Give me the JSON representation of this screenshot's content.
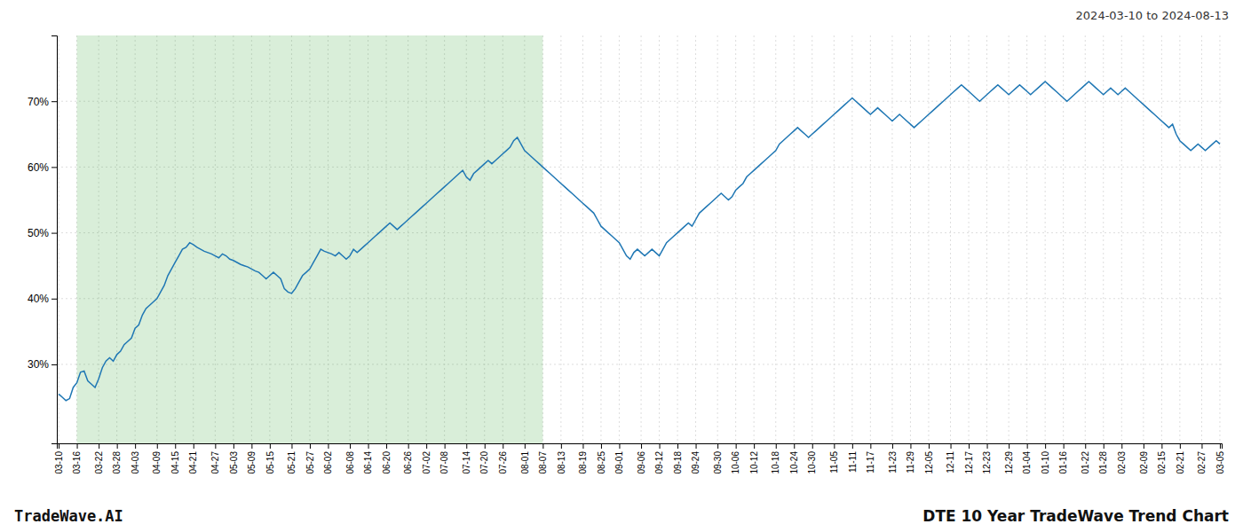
{
  "chart_data": {
    "type": "line",
    "title": "DTE 10 Year TradeWave Trend Chart",
    "subtitle": "2024-03-10 to 2024-08-13",
    "annotations": [
      "TradeWave.AI"
    ],
    "grid": true,
    "ylim": [
      18,
      80
    ],
    "yticks": [
      {
        "value": 30,
        "label": "30%"
      },
      {
        "value": 40,
        "label": "40%"
      },
      {
        "value": 50,
        "label": "50%"
      },
      {
        "value": 60,
        "label": "60%"
      },
      {
        "value": 70,
        "label": "70%"
      }
    ],
    "shaded_range": [
      "03-16",
      "08-07"
    ],
    "categories": [
      "03-10",
      null,
      null,
      null,
      null,
      "03-16",
      null,
      null,
      null,
      null,
      null,
      "03-22",
      null,
      null,
      null,
      null,
      "03-28",
      null,
      null,
      null,
      null,
      "04-03",
      null,
      null,
      null,
      null,
      null,
      "04-09",
      null,
      null,
      null,
      null,
      "04-15",
      null,
      null,
      null,
      null,
      "04-21",
      null,
      null,
      null,
      null,
      null,
      "04-27",
      null,
      null,
      null,
      null,
      "05-03",
      null,
      null,
      null,
      null,
      "05-09",
      null,
      null,
      null,
      null,
      "05-15",
      null,
      null,
      null,
      null,
      null,
      "05-21",
      null,
      null,
      null,
      null,
      "05-27",
      null,
      null,
      null,
      null,
      "06-02",
      null,
      null,
      null,
      null,
      null,
      "06-08",
      null,
      null,
      null,
      null,
      "06-14",
      null,
      null,
      null,
      null,
      "06-20",
      null,
      null,
      null,
      null,
      null,
      "06-26",
      null,
      null,
      null,
      null,
      "07-02",
      null,
      null,
      null,
      null,
      "07-08",
      null,
      null,
      null,
      null,
      null,
      "07-14",
      null,
      null,
      null,
      null,
      "07-20",
      null,
      null,
      null,
      null,
      "07-26",
      null,
      null,
      null,
      null,
      null,
      "08-01",
      null,
      null,
      null,
      null,
      "08-07",
      null,
      null,
      null,
      null,
      "08-13",
      null,
      null,
      null,
      null,
      null,
      "08-19",
      null,
      null,
      null,
      null,
      "08-25",
      null,
      null,
      null,
      null,
      "09-01",
      null,
      null,
      null,
      null,
      null,
      "09-06",
      null,
      null,
      null,
      null,
      "09-12",
      null,
      null,
      null,
      null,
      "09-18",
      null,
      null,
      null,
      null,
      "09-24",
      null,
      null,
      null,
      null,
      null,
      "09-30",
      null,
      null,
      null,
      null,
      "10-06",
      null,
      null,
      null,
      null,
      "10-12",
      null,
      null,
      null,
      null,
      null,
      "10-18",
      null,
      null,
      null,
      null,
      "10-24",
      null,
      null,
      null,
      null,
      "10-30",
      null,
      null,
      null,
      null,
      null,
      "11-05",
      null,
      null,
      null,
      null,
      "11-11",
      null,
      null,
      null,
      null,
      "11-17",
      null,
      null,
      null,
      null,
      null,
      "11-23",
      null,
      null,
      null,
      null,
      "11-29",
      null,
      null,
      null,
      null,
      "12-05",
      null,
      null,
      null,
      null,
      null,
      "12-11",
      null,
      null,
      null,
      null,
      "12-17",
      null,
      null,
      null,
      null,
      "12-23",
      null,
      null,
      null,
      null,
      null,
      "12-29",
      null,
      null,
      null,
      null,
      "01-04",
      null,
      null,
      null,
      null,
      "01-10",
      null,
      null,
      null,
      null,
      "01-16",
      null,
      null,
      null,
      null,
      null,
      "01-22",
      null,
      null,
      null,
      null,
      "01-28",
      null,
      null,
      null,
      null,
      "02-03",
      null,
      null,
      null,
      null,
      null,
      "02-09",
      null,
      null,
      null,
      null,
      "02-15",
      null,
      null,
      null,
      null,
      "02-21",
      null,
      null,
      null,
      null,
      null,
      "02-27",
      null,
      null,
      null,
      null,
      "03-05"
    ],
    "values": [
      25.5,
      25.0,
      24.5,
      24.8,
      26.5,
      27.2,
      28.8,
      29.0,
      27.5,
      27.0,
      26.5,
      27.8,
      29.5,
      30.5,
      31.0,
      30.5,
      31.5,
      32.0,
      33.0,
      33.5,
      34.0,
      35.5,
      36.0,
      37.5,
      38.5,
      39.0,
      39.5,
      40.0,
      41.0,
      42.0,
      43.5,
      44.5,
      45.5,
      46.5,
      47.5,
      47.8,
      48.5,
      48.2,
      47.8,
      47.5,
      47.2,
      47.0,
      46.8,
      46.5,
      46.2,
      46.8,
      46.5,
      46.0,
      45.8,
      45.5,
      45.2,
      45.0,
      44.8,
      44.5,
      44.2,
      44.0,
      43.5,
      43.0,
      43.5,
      44.0,
      43.5,
      43.0,
      41.5,
      41.0,
      40.8,
      41.5,
      42.5,
      43.5,
      44.0,
      44.5,
      45.5,
      46.5,
      47.5,
      47.2,
      47.0,
      46.8,
      46.5,
      47.0,
      46.5,
      46.0,
      46.5,
      47.5,
      47.0,
      47.5,
      48.0,
      48.5,
      49.0,
      49.5,
      50.0,
      50.5,
      51.0,
      51.5,
      51.0,
      50.5,
      51.0,
      51.5,
      52.0,
      52.5,
      53.0,
      53.5,
      54.0,
      54.5,
      55.0,
      55.5,
      56.0,
      56.5,
      57.0,
      57.5,
      58.0,
      58.5,
      59.0,
      59.5,
      58.5,
      58.0,
      59.0,
      59.5,
      60.0,
      60.5,
      61.0,
      60.5,
      61.0,
      61.5,
      62.0,
      62.5,
      63.0,
      64.0,
      64.5,
      63.5,
      62.5,
      62.0,
      61.5,
      61.0,
      60.5,
      60.0,
      59.5,
      59.0,
      58.5,
      58.0,
      57.5,
      57.0,
      56.5,
      56.0,
      55.5,
      55.0,
      54.5,
      54.0,
      53.5,
      53.0,
      52.0,
      51.0,
      50.5,
      50.0,
      49.5,
      49.0,
      48.5,
      47.5,
      46.5,
      46.0,
      47.0,
      47.5,
      47.0,
      46.5,
      47.0,
      47.5,
      47.0,
      46.5,
      47.5,
      48.5,
      49.0,
      49.5,
      50.0,
      50.5,
      51.0,
      51.5,
      51.0,
      52.0,
      53.0,
      53.5,
      54.0,
      54.5,
      55.0,
      55.5,
      56.0,
      55.5,
      55.0,
      55.5,
      56.5,
      57.0,
      57.5,
      58.5,
      59.0,
      59.5,
      60.0,
      60.5,
      61.0,
      61.5,
      62.0,
      62.5,
      63.5,
      64.0,
      64.5,
      65.0,
      65.5,
      66.0,
      65.5,
      65.0,
      64.5,
      65.0,
      65.5,
      66.0,
      66.5,
      67.0,
      67.5,
      68.0,
      68.5,
      69.0,
      69.5,
      70.0,
      70.5,
      70.0,
      69.5,
      69.0,
      68.5,
      68.0,
      68.5,
      69.0,
      68.5,
      68.0,
      67.5,
      67.0,
      67.5,
      68.0,
      67.5,
      67.0,
      66.5,
      66.0,
      66.5,
      67.0,
      67.5,
      68.0,
      68.5,
      69.0,
      69.5,
      70.0,
      70.5,
      71.0,
      71.5,
      72.0,
      72.5,
      72.0,
      71.5,
      71.0,
      70.5,
      70.0,
      70.5,
      71.0,
      71.5,
      72.0,
      72.5,
      72.0,
      71.5,
      71.0,
      71.5,
      72.0,
      72.5,
      72.0,
      71.5,
      71.0,
      71.5,
      72.0,
      72.5,
      73.0,
      72.5,
      72.0,
      71.5,
      71.0,
      70.5,
      70.0,
      70.5,
      71.0,
      71.5,
      72.0,
      72.5,
      73.0,
      72.5,
      72.0,
      71.5,
      71.0,
      71.5,
      72.0,
      71.5,
      71.0,
      71.5,
      72.0,
      71.5,
      71.0,
      70.5,
      70.0,
      69.5,
      69.0,
      68.5,
      68.0,
      67.5,
      67.0,
      66.5,
      66.0,
      66.5,
      65.0,
      64.0,
      63.5,
      63.0,
      62.5,
      63.0,
      63.5,
      63.0,
      62.5,
      63.0,
      63.5,
      64.0,
      63.5
    ]
  }
}
